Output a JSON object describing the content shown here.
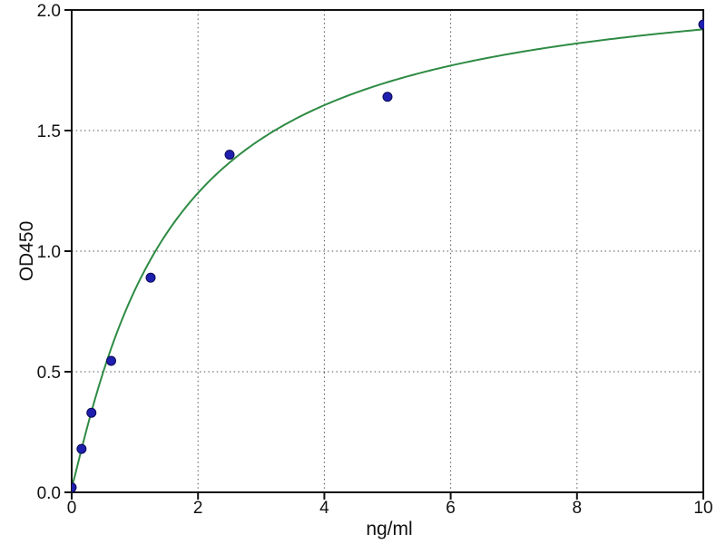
{
  "chart_data": {
    "type": "scatter",
    "title": "",
    "xlabel": "ng/ml",
    "ylabel": "OD450",
    "xlim": [
      0,
      10
    ],
    "ylim": [
      0,
      2.0
    ],
    "x_ticks": [
      0,
      2,
      4,
      6,
      8,
      10
    ],
    "x_tick_labels": [
      "0",
      "2",
      "4",
      "6",
      "8",
      "10"
    ],
    "y_ticks": [
      0.0,
      0.5,
      1.0,
      1.5,
      2.0
    ],
    "y_tick_labels": [
      "0.0",
      "0.5",
      "1.0",
      "1.5",
      "2.0"
    ],
    "grid": "dotted",
    "legend": "none",
    "points": [
      {
        "x": 0,
        "y": 0.02
      },
      {
        "x": 0.156,
        "y": 0.18
      },
      {
        "x": 0.3125,
        "y": 0.33
      },
      {
        "x": 0.625,
        "y": 0.545
      },
      {
        "x": 1.25,
        "y": 0.89
      },
      {
        "x": 2.5,
        "y": 1.4
      },
      {
        "x": 5,
        "y": 1.64
      },
      {
        "x": 10,
        "y": 1.94
      }
    ],
    "fit_curve": {
      "model": "4PL",
      "params": {
        "a": 0.02,
        "b": 1.1,
        "c": 1.55,
        "d": 2.164
      }
    },
    "colors": {
      "marker_fill": "#1f1faf",
      "marker_edge": "#0a0a55",
      "curve": "#2e8b44",
      "grid": "#555555",
      "spine": "#111111",
      "text": "#111111"
    }
  }
}
